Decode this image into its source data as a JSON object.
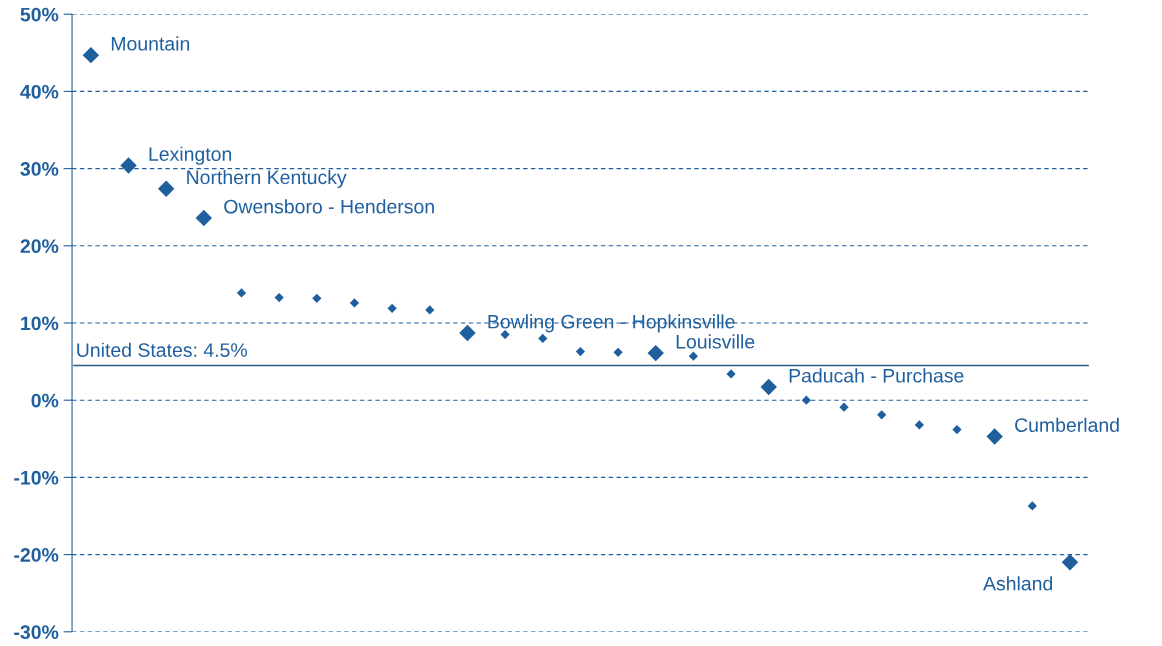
{
  "chart_data": {
    "type": "scatter",
    "categories": [
      null,
      null,
      null,
      null,
      null,
      null,
      null,
      null,
      null,
      null,
      null,
      null,
      null,
      null,
      null,
      null,
      null,
      null,
      null,
      null,
      null,
      null,
      null,
      null,
      null,
      null,
      null
    ],
    "series": [
      {
        "name": "Mountain",
        "color": "#1f5f9e",
        "marker": "diamond",
        "values": [
          44.7,
          null,
          null,
          null,
          null,
          null,
          null,
          null,
          null,
          null,
          null,
          null,
          null,
          null,
          null,
          null,
          null,
          null,
          null,
          null,
          null,
          null,
          null,
          null,
          null,
          null,
          null
        ]
      },
      {
        "name": "Lexington",
        "color": "#1f5f9e",
        "marker": "diamond",
        "values": [
          null,
          30.4,
          null,
          null,
          null,
          null,
          null,
          null,
          null,
          null,
          null,
          null,
          null,
          null,
          null,
          null,
          null,
          null,
          null,
          null,
          null,
          null,
          null,
          null,
          null,
          null,
          null
        ]
      },
      {
        "name": "Northern Kentucky",
        "color": "#1f5f9e",
        "marker": "diamond",
        "values": [
          null,
          null,
          27.4,
          null,
          null,
          null,
          null,
          null,
          null,
          null,
          null,
          null,
          null,
          null,
          null,
          null,
          null,
          null,
          null,
          null,
          null,
          null,
          null,
          null,
          null,
          null,
          null
        ]
      },
      {
        "name": "Owensboro - Henderson",
        "color": "#1f5f9e",
        "marker": "diamond",
        "values": [
          null,
          null,
          null,
          23.6,
          null,
          null,
          null,
          null,
          null,
          null,
          null,
          null,
          null,
          null,
          null,
          null,
          null,
          null,
          null,
          null,
          null,
          null,
          null,
          null,
          null,
          null,
          null
        ]
      },
      {
        "name": "Bowling Green - Hopkinsville",
        "color": "#1f5f9e",
        "marker": "diamond",
        "values": [
          null,
          null,
          null,
          null,
          null,
          null,
          null,
          null,
          null,
          null,
          8.7,
          null,
          null,
          null,
          null,
          null,
          null,
          null,
          null,
          null,
          null,
          null,
          null,
          null,
          null,
          null,
          null
        ]
      },
      {
        "name": "Louisville",
        "color": "#1f5f9e",
        "marker": "diamond",
        "values": [
          null,
          null,
          null,
          null,
          null,
          null,
          null,
          null,
          null,
          null,
          null,
          null,
          null,
          null,
          null,
          6.1,
          null,
          null,
          null,
          null,
          null,
          null,
          null,
          null,
          null,
          null,
          null
        ]
      },
      {
        "name": "Paducah - Purchase",
        "color": "#1f5f9e",
        "marker": "diamond",
        "values": [
          null,
          null,
          null,
          null,
          null,
          null,
          null,
          null,
          null,
          null,
          null,
          null,
          null,
          null,
          null,
          null,
          null,
          null,
          1.7,
          null,
          null,
          null,
          null,
          null,
          null,
          null,
          null
        ]
      },
      {
        "name": "Cumberland",
        "color": "#1f5f9e",
        "marker": "diamond",
        "values": [
          null,
          null,
          null,
          null,
          null,
          null,
          null,
          null,
          null,
          null,
          null,
          null,
          null,
          null,
          null,
          null,
          null,
          null,
          null,
          null,
          null,
          null,
          null,
          null,
          -4.7,
          null,
          null
        ]
      },
      {
        "name": "Ashland",
        "color": "#1f5f9e",
        "marker": "diamond",
        "values": [
          null,
          null,
          null,
          null,
          null,
          null,
          null,
          null,
          null,
          null,
          null,
          null,
          null,
          null,
          null,
          null,
          null,
          null,
          null,
          null,
          null,
          null,
          null,
          null,
          null,
          null,
          -21.0
        ]
      },
      {
        "color": "#1f5f9e",
        "marker": "diamond",
        "values": [
          null,
          null,
          null,
          null,
          13.9,
          13.3,
          13.2,
          12.6,
          11.9,
          11.7,
          null,
          8.5,
          8.0,
          6.3,
          6.2,
          null,
          5.7,
          3.4,
          null,
          0,
          -0.9,
          -1.9,
          -3.2,
          -3.8,
          null,
          -13.7,
          null
        ]
      }
    ],
    "ylim": [
      -30,
      50
    ],
    "yticks": [
      {
        "value": -30,
        "label": "-30%"
      },
      {
        "value": -20,
        "label": "-20%"
      },
      {
        "value": -10,
        "label": "-10%"
      },
      {
        "value": 0,
        "label": "0%"
      },
      {
        "value": 10,
        "label": "10%"
      },
      {
        "value": 20,
        "label": "20%"
      },
      {
        "value": 30,
        "label": "30%"
      },
      {
        "value": 40,
        "label": "40%"
      },
      {
        "value": 50,
        "label": "50%"
      }
    ],
    "grid": "y",
    "tick_labels": "y",
    "ref_lines": [
      {
        "axis": "y",
        "value": 4.5,
        "label": "United States: 4.5%",
        "color": "#2a5a80"
      }
    ]
  }
}
